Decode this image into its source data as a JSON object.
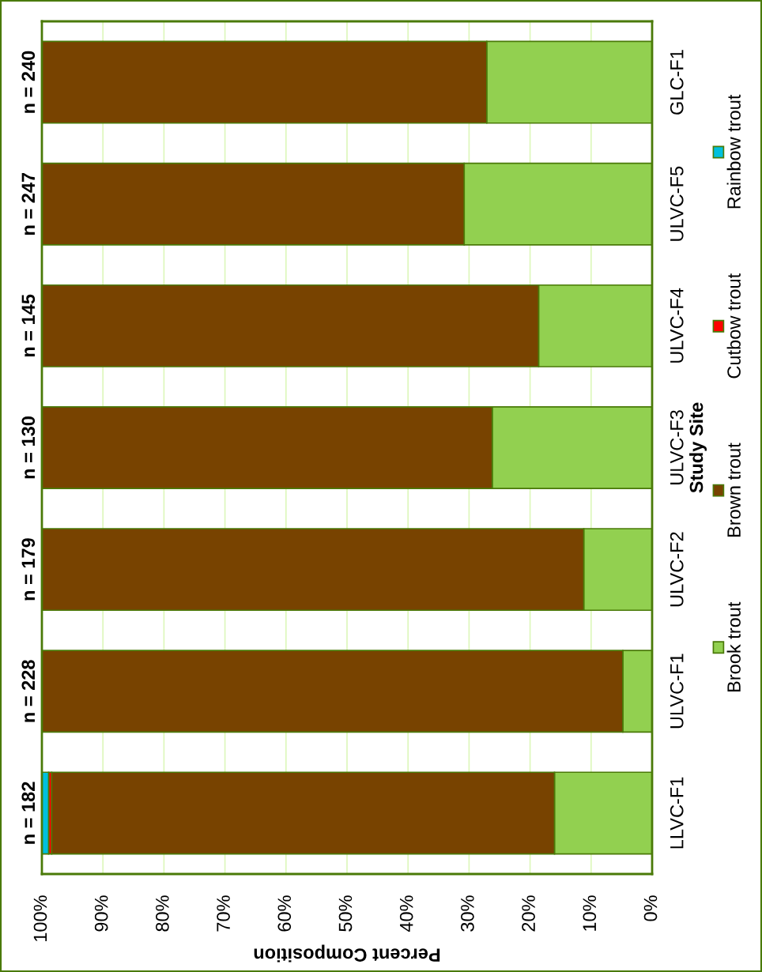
{
  "chart_data": {
    "type": "bar",
    "orientation": "horizontal",
    "stacked": true,
    "categories": [
      "GLC-F1",
      "ULVC-F5",
      "ULVC-F4",
      "ULVC-F3",
      "ULVC-F2",
      "ULVC-F1",
      "LLVC-F1"
    ],
    "series": [
      {
        "name": "Brook trout",
        "color": "#92d050",
        "values": [
          27.1,
          30.8,
          18.6,
          26.2,
          11.2,
          4.8,
          16.0
        ]
      },
      {
        "name": "Brown trout",
        "color": "#784300",
        "values": [
          72.9,
          69.2,
          81.4,
          73.8,
          88.8,
          95.2,
          82.4
        ]
      },
      {
        "name": "Cutbow trout",
        "color": "#ff0000",
        "values": [
          0,
          0,
          0,
          0,
          0,
          0,
          0.5
        ]
      },
      {
        "name": "Rainbow trout",
        "color": "#00c0de",
        "values": [
          0,
          0,
          0,
          0,
          0,
          0,
          1.1
        ]
      }
    ],
    "xlim": [
      100,
      0
    ],
    "xticks": [
      {
        "value": 100,
        "label": "100%"
      },
      {
        "value": 90,
        "label": "90%"
      },
      {
        "value": 80,
        "label": "80%"
      },
      {
        "value": 70,
        "label": "70%"
      },
      {
        "value": 60,
        "label": "60%"
      },
      {
        "value": 50,
        "label": "50%"
      },
      {
        "value": 40,
        "label": "40%"
      },
      {
        "value": 30,
        "label": "30%"
      },
      {
        "value": 20,
        "label": "20%"
      },
      {
        "value": 10,
        "label": "10%"
      },
      {
        "value": 0,
        "label": "0%"
      }
    ],
    "xlabel": "Percent Composition",
    "ylabel": "Study Site",
    "annotations": [
      "n = 240",
      "n = 247",
      "n = 145",
      "n = 130",
      "n = 179",
      "n = 228",
      "n = 182"
    ],
    "grid": "x",
    "legend": "right"
  }
}
